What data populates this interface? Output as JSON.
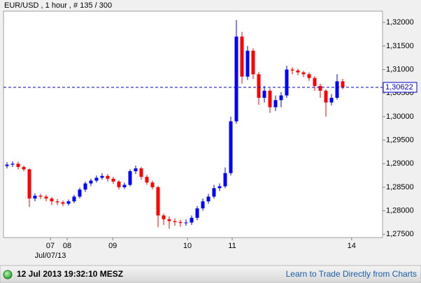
{
  "chart_data": {
    "type": "candlestick",
    "title": "EUR/USD , 1 hour , # 135 / 300",
    "up_color": "#0000ff",
    "down_color": "#ff0000",
    "x": [
      0,
      1,
      2,
      3,
      4,
      5,
      6,
      7,
      8,
      9,
      10,
      11,
      12,
      13,
      14,
      15,
      16,
      17,
      18,
      19,
      20,
      21,
      22,
      23,
      24,
      25,
      26,
      27,
      28,
      29,
      30,
      31,
      32,
      33,
      34,
      35,
      36,
      37,
      38,
      39,
      40,
      41,
      42,
      43,
      44,
      45,
      46,
      47,
      48,
      49,
      50,
      51,
      52,
      53,
      54,
      55,
      56,
      57,
      58,
      59,
      60
    ],
    "open": [
      1.2895,
      1.2898,
      1.29,
      1.2893,
      1.2888,
      1.2826,
      1.2832,
      1.283,
      1.2826,
      1.282,
      1.2818,
      1.2815,
      1.282,
      1.283,
      1.2845,
      1.2858,
      1.2864,
      1.287,
      1.2874,
      1.2868,
      1.2862,
      1.285,
      1.2855,
      1.2884,
      1.289,
      1.2872,
      1.286,
      1.285,
      1.279,
      1.2782,
      1.2778,
      1.2776,
      1.2774,
      1.2775,
      1.2785,
      1.2805,
      1.282,
      1.283,
      1.2848,
      1.2852,
      1.288,
      1.299,
      1.317,
      1.3085,
      1.314,
      1.309,
      1.304,
      1.3055,
      1.302,
      1.3035,
      1.3045,
      1.31,
      1.3098,
      1.3094,
      1.309,
      1.3082,
      1.3065,
      1.3055,
      1.303,
      1.304,
      1.3075
    ],
    "high": [
      1.2903,
      1.2905,
      1.2904,
      1.2896,
      1.289,
      1.2837,
      1.2836,
      1.2834,
      1.2829,
      1.2825,
      1.2822,
      1.2824,
      1.2834,
      1.2849,
      1.2862,
      1.2868,
      1.2875,
      1.288,
      1.2878,
      1.2872,
      1.2865,
      1.286,
      1.2888,
      1.2896,
      1.2893,
      1.2876,
      1.2864,
      1.2853,
      1.2794,
      1.2788,
      1.2784,
      1.2781,
      1.2782,
      1.279,
      1.281,
      1.2826,
      1.2836,
      1.2855,
      1.2858,
      1.2892,
      1.3,
      1.3205,
      1.318,
      1.315,
      1.3145,
      1.3095,
      1.3065,
      1.306,
      1.3045,
      1.3052,
      1.3108,
      1.3105,
      1.3102,
      1.3097,
      1.3094,
      1.3086,
      1.307,
      1.3058,
      1.3048,
      1.309,
      1.308
    ],
    "low": [
      1.289,
      1.2893,
      1.2888,
      1.2884,
      1.2808,
      1.282,
      1.2825,
      1.282,
      1.2812,
      1.2812,
      1.281,
      1.2811,
      1.2816,
      1.2826,
      1.284,
      1.2852,
      1.286,
      1.2866,
      1.2862,
      1.2857,
      1.2845,
      1.2846,
      1.2852,
      1.2878,
      1.2866,
      1.2855,
      1.2845,
      1.2765,
      1.277,
      1.2762,
      1.2768,
      1.2766,
      1.2768,
      1.277,
      1.278,
      1.28,
      1.2815,
      1.2826,
      1.2842,
      1.2848,
      1.2875,
      1.2985,
      1.307,
      1.3078,
      1.308,
      1.3025,
      1.303,
      1.3008,
      1.3012,
      1.302,
      1.304,
      1.309,
      1.3088,
      1.3084,
      1.3076,
      1.3055,
      1.304,
      1.3,
      1.3024,
      1.3036,
      1.3058
    ],
    "close": [
      1.2898,
      1.29,
      1.2893,
      1.2888,
      1.2826,
      1.2832,
      1.283,
      1.2826,
      1.282,
      1.2818,
      1.2815,
      1.282,
      1.283,
      1.2845,
      1.2858,
      1.2864,
      1.287,
      1.2874,
      1.2868,
      1.2862,
      1.285,
      1.2855,
      1.2884,
      1.289,
      1.2872,
      1.286,
      1.285,
      1.279,
      1.2782,
      1.2778,
      1.2776,
      1.2774,
      1.2775,
      1.2785,
      1.2805,
      1.282,
      1.283,
      1.2848,
      1.2852,
      1.288,
      1.299,
      1.317,
      1.3085,
      1.314,
      1.309,
      1.304,
      1.3055,
      1.302,
      1.3035,
      1.3045,
      1.31,
      1.3098,
      1.3094,
      1.309,
      1.3082,
      1.3065,
      1.3055,
      1.303,
      1.304,
      1.3075,
      1.30622
    ],
    "xlim": [
      -0.625,
      67.125
    ],
    "xticks": [
      {
        "value": 7.75,
        "label": "07"
      },
      {
        "value": 10.75,
        "label": "08"
      },
      {
        "value": 18.9,
        "label": "09"
      },
      {
        "value": 32.25,
        "label": "10"
      },
      {
        "value": 40.25,
        "label": "11"
      },
      {
        "value": 61.6,
        "label": "14"
      }
    ],
    "x_date_label": "Jul/07/13",
    "ylim": [
      1.2743,
      1.3224
    ],
    "yticks": [
      {
        "value": 1.275,
        "label": "1,27500"
      },
      {
        "value": 1.28,
        "label": "1,28000"
      },
      {
        "value": 1.285,
        "label": "1,28500"
      },
      {
        "value": 1.29,
        "label": "1,29000"
      },
      {
        "value": 1.295,
        "label": "1,29500"
      },
      {
        "value": 1.3,
        "label": "1,30000"
      },
      {
        "value": 1.305,
        "label": "1,30500"
      },
      {
        "value": 1.31,
        "label": "1,31000"
      },
      {
        "value": 1.315,
        "label": "1,31500"
      },
      {
        "value": 1.32,
        "label": "1,32000"
      }
    ],
    "last_price": {
      "value": 1.30622,
      "label": "1,30622"
    },
    "last_price_color": "#0000cc"
  },
  "footer": {
    "timestamp": "12 Jul 2013 19:32:10 MESZ",
    "link": "Learn to Trade Directly from Charts"
  }
}
